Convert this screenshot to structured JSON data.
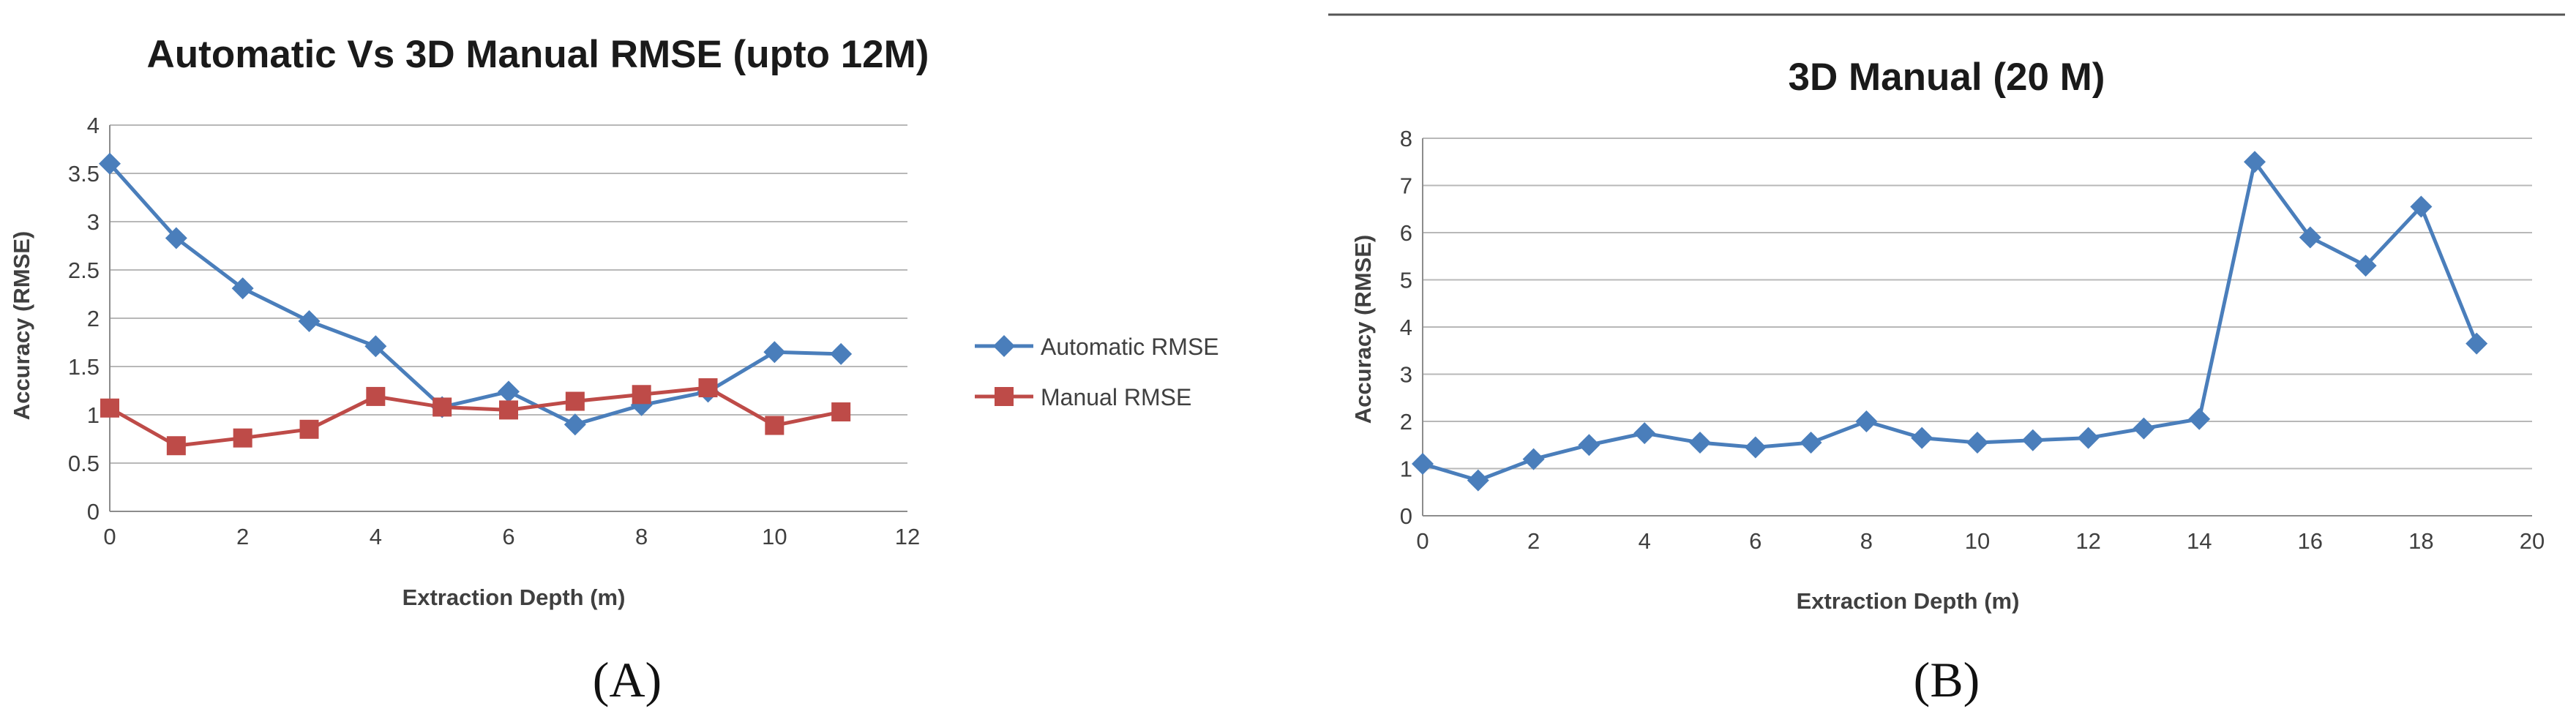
{
  "chart_data": [
    {
      "panel": "A",
      "type": "line",
      "title": "Automatic Vs 3D Manual RMSE (upto 12M)",
      "xlabel": "Extraction Depth (m)",
      "ylabel": "Accuracy (RMSE)",
      "xlim": [
        0,
        12
      ],
      "ylim": [
        0,
        4
      ],
      "xticks": [
        "0",
        "2",
        "4",
        "6",
        "8",
        "10",
        "12"
      ],
      "yticks": [
        "0",
        "0.5",
        "1",
        "1.5",
        "2",
        "2.5",
        "3",
        "3.5",
        "4"
      ],
      "grid": "horizontal",
      "legend_position": "right",
      "x": [
        0,
        1,
        2,
        3,
        4,
        5,
        6,
        7,
        8,
        9,
        10,
        11
      ],
      "series": [
        {
          "name": "Automatic RMSE",
          "color": "#4a7ebb",
          "marker": "diamond",
          "values": [
            3.6,
            2.83,
            2.31,
            1.97,
            1.71,
            1.08,
            1.24,
            0.9,
            1.1,
            1.24,
            1.65,
            1.63
          ]
        },
        {
          "name": "Manual RMSE",
          "color": "#be4b48",
          "marker": "square",
          "values": [
            1.07,
            0.68,
            0.76,
            0.85,
            1.19,
            1.08,
            1.05,
            1.14,
            1.21,
            1.28,
            0.89,
            1.03
          ]
        }
      ]
    },
    {
      "panel": "B",
      "type": "line",
      "title": "3D Manual (20 M)",
      "xlabel": "Extraction Depth (m)",
      "ylabel": "Accuracy (RMSE)",
      "xlim": [
        0,
        20
      ],
      "ylim": [
        0,
        8
      ],
      "xticks": [
        "0",
        "2",
        "4",
        "6",
        "8",
        "10",
        "12",
        "14",
        "16",
        "18",
        "20"
      ],
      "yticks": [
        "0",
        "1",
        "2",
        "3",
        "4",
        "5",
        "6",
        "7",
        "8"
      ],
      "grid": "horizontal",
      "x": [
        0,
        1,
        2,
        3,
        4,
        5,
        6,
        7,
        8,
        9,
        10,
        11,
        12,
        13,
        14,
        15,
        16,
        17,
        18,
        19
      ],
      "series": [
        {
          "color": "#4a7ebb",
          "marker": "diamond",
          "values": [
            1.1,
            0.75,
            1.2,
            1.5,
            1.75,
            1.55,
            1.45,
            1.55,
            2.0,
            1.65,
            1.55,
            1.6,
            1.65,
            1.85,
            2.05,
            7.5,
            5.9,
            5.3,
            6.55,
            3.65
          ]
        }
      ]
    }
  ],
  "captions": {
    "a": "(A)",
    "b": "(B)"
  },
  "colors": {
    "grid": "#b8b8b8",
    "axis": "#8c8c8c",
    "rule": "#555555"
  }
}
